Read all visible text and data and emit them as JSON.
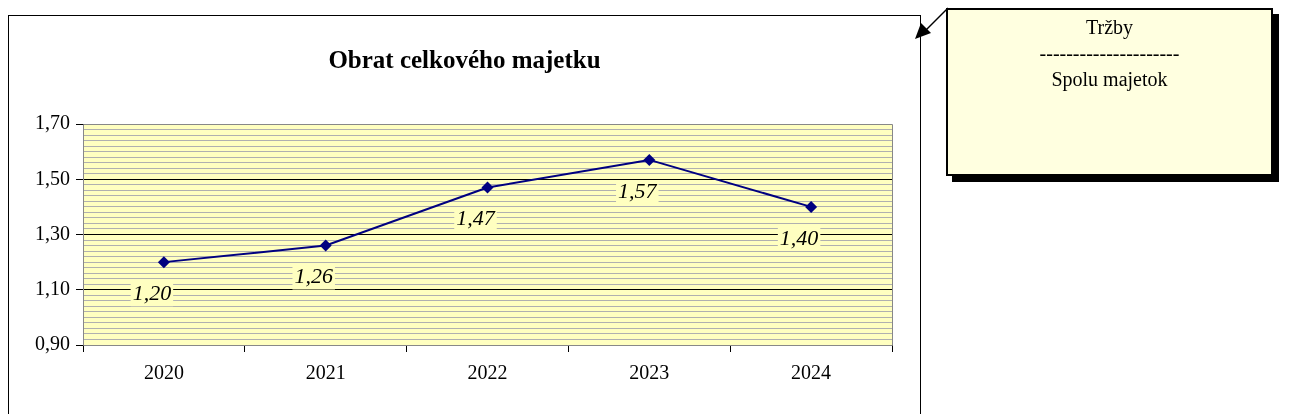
{
  "chart_data": {
    "type": "line",
    "title": "Obrat celkového majetku",
    "categories": [
      "2020",
      "2021",
      "2022",
      "2023",
      "2024"
    ],
    "series": [
      {
        "color": "#000080",
        "values": [
          1.2,
          1.26,
          1.47,
          1.57,
          1.4
        ],
        "value_labels": [
          "1,20",
          "1,26",
          "1,47",
          "1,57",
          "1,40"
        ]
      }
    ],
    "ylim": [
      0.9,
      1.7
    ],
    "yticks": [
      {
        "value": 0.9,
        "label": "0,90"
      },
      {
        "value": 0.92,
        "label": null
      },
      {
        "value": 0.94,
        "label": null
      },
      {
        "value": 0.96,
        "label": null
      },
      {
        "value": 0.98,
        "label": null
      },
      {
        "value": 1.0,
        "label": null
      },
      {
        "value": 1.02,
        "label": null
      },
      {
        "value": 1.04,
        "label": null
      },
      {
        "value": 1.06,
        "label": null
      },
      {
        "value": 1.08,
        "label": null
      },
      {
        "value": 1.1,
        "label": "1,10"
      },
      {
        "value": 1.12,
        "label": null
      },
      {
        "value": 1.14,
        "label": null
      },
      {
        "value": 1.16,
        "label": null
      },
      {
        "value": 1.18,
        "label": null
      },
      {
        "value": 1.2,
        "label": null
      },
      {
        "value": 1.22,
        "label": null
      },
      {
        "value": 1.24,
        "label": null
      },
      {
        "value": 1.26,
        "label": null
      },
      {
        "value": 1.28,
        "label": null
      },
      {
        "value": 1.3,
        "label": "1,30"
      },
      {
        "value": 1.32,
        "label": null
      },
      {
        "value": 1.34,
        "label": null
      },
      {
        "value": 1.36,
        "label": null
      },
      {
        "value": 1.38,
        "label": null
      },
      {
        "value": 1.4,
        "label": null
      },
      {
        "value": 1.42,
        "label": null
      },
      {
        "value": 1.44,
        "label": null
      },
      {
        "value": 1.46,
        "label": null
      },
      {
        "value": 1.48,
        "label": null
      },
      {
        "value": 1.5,
        "label": "1,50"
      },
      {
        "value": 1.52,
        "label": null
      },
      {
        "value": 1.54,
        "label": null
      },
      {
        "value": 1.56,
        "label": null
      },
      {
        "value": 1.58,
        "label": null
      },
      {
        "value": 1.6,
        "label": null
      },
      {
        "value": 1.62,
        "label": null
      },
      {
        "value": 1.64,
        "label": null
      },
      {
        "value": 1.66,
        "label": null
      },
      {
        "value": 1.68,
        "label": null
      },
      {
        "value": 1.7,
        "label": "1,70"
      }
    ],
    "grid": "y",
    "marker": "diamond",
    "line_style": "solid",
    "annotations": [
      "Tržby",
      "---------------------",
      "Spolu majetok"
    ]
  }
}
